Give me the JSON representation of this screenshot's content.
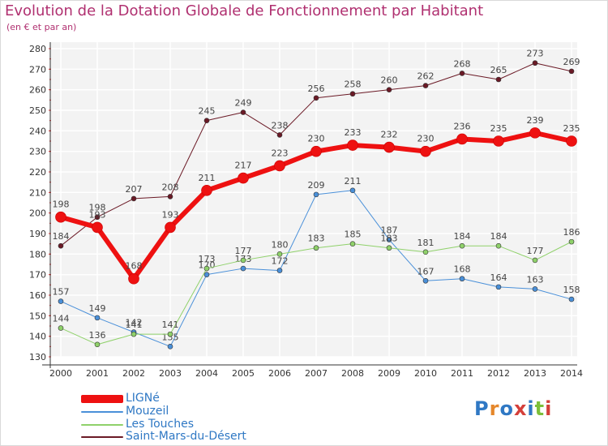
{
  "header": {
    "title": "Evolution de la Dotation Globale de Fonctionnement par Habitant",
    "subtitle": "(en € et par an)"
  },
  "brand": {
    "logo": "Proxiti"
  },
  "chart_data": {
    "type": "line",
    "title": "Evolution de la Dotation Globale de Fonctionnement par Habitant",
    "subtitle": "(en € et par an)",
    "xlabel": "",
    "ylabel": "",
    "ylim": [
      130,
      280
    ],
    "ytick_step": 10,
    "grid": true,
    "legend_position": "bottom-left",
    "x": [
      "2000",
      "2001",
      "2002",
      "2003",
      "2004",
      "2005",
      "2006",
      "2007",
      "2008",
      "2009",
      "2010",
      "2011",
      "2012",
      "2013",
      "2014"
    ],
    "series": [
      {
        "name": "Saint-Mars-du-Désert",
        "color": "#6b1a26",
        "width": 1,
        "values": [
          184,
          198,
          207,
          208,
          245,
          249,
          238,
          256,
          258,
          260,
          262,
          268,
          265,
          273,
          269
        ]
      },
      {
        "name": "Mouzeil",
        "color": "#4a90d9",
        "width": 1,
        "values": [
          157,
          149,
          142,
          135,
          170,
          173,
          172,
          209,
          211,
          187,
          167,
          168,
          164,
          163,
          158
        ]
      },
      {
        "name": "Les Touches",
        "color": "#8fd16a",
        "width": 1,
        "values": [
          144,
          136,
          141,
          141,
          173,
          177,
          180,
          183,
          185,
          183,
          181,
          184,
          184,
          177,
          186
        ]
      },
      {
        "name": "LIGNé",
        "color": "#ee1111",
        "width": 6,
        "values": [
          198,
          193,
          168,
          193,
          211,
          217,
          223,
          230,
          233,
          232,
          230,
          236,
          235,
          239,
          235
        ]
      }
    ],
    "legend": [
      "LIGNé",
      "Mouzeil",
      "Les Touches",
      "Saint-Mars-du-Désert"
    ]
  }
}
